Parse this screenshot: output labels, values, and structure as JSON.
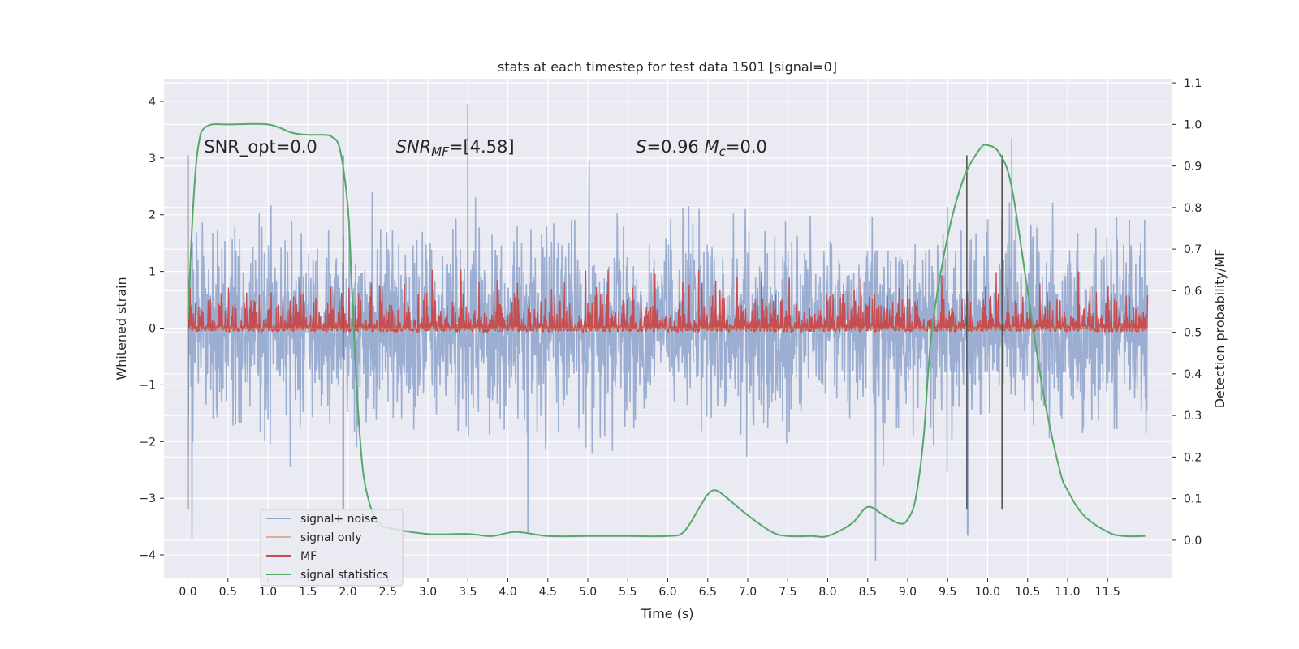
{
  "chart_data": {
    "type": "line",
    "title": "stats at each timestep for test data 1501 [signal=0]",
    "xlabel": "Time (s)",
    "ylabel": "Whitened strain",
    "y2label": "Detection probability/MF",
    "xlim": [
      -0.3,
      12.3
    ],
    "ylim": [
      -4.4,
      4.4
    ],
    "y2lim": [
      -0.09,
      1.11
    ],
    "x_ticks": [
      0.0,
      0.5,
      1.0,
      1.5,
      2.0,
      2.5,
      3.0,
      3.5,
      4.0,
      4.5,
      5.0,
      5.5,
      6.0,
      6.5,
      7.0,
      7.5,
      8.0,
      8.5,
      9.0,
      9.5,
      10.0,
      10.5,
      11.0,
      11.5
    ],
    "x_tick_labels": [
      "0.0",
      "0.5",
      "1.0",
      "1.5",
      "2.0",
      "2.5",
      "3.0",
      "3.5",
      "4.0",
      "4.5",
      "5.0",
      "5.5",
      "6.0",
      "6.5",
      "7.0",
      "7.5",
      "8.0",
      "8.5",
      "9.0",
      "9.5",
      "10.0",
      "10.5",
      "11.0",
      "11.5"
    ],
    "y_ticks": [
      -4,
      -3,
      -2,
      -1,
      0,
      1,
      2,
      3,
      4
    ],
    "y_tick_labels": [
      "−4",
      "−3",
      "−2",
      "−1",
      "0",
      "1",
      "2",
      "3",
      "4"
    ],
    "y2_ticks": [
      0.0,
      0.1,
      0.2,
      0.3,
      0.4,
      0.5,
      0.6,
      0.7,
      0.8,
      0.9,
      1.0,
      1.1
    ],
    "y2_tick_labels": [
      "0.0",
      "0.1",
      "0.2",
      "0.3",
      "0.4",
      "0.5",
      "0.6",
      "0.7",
      "0.8",
      "0.9",
      "1.0",
      "1.1"
    ],
    "grid": true,
    "legend_position": "bottom-left",
    "annotations": [
      {
        "parts": [
          {
            "t": "SNR_opt=0.0",
            "i": false
          }
        ],
        "x": 0.2
      },
      {
        "parts": [
          {
            "t": "SNR",
            "i": true
          },
          {
            "t": "MF",
            "i": true,
            "sub": true
          },
          {
            "t": "=[4.58]",
            "i": false
          }
        ],
        "x": 2.6
      },
      {
        "parts": [
          {
            "t": "S",
            "i": true
          },
          {
            "t": "=0.96  ",
            "i": false
          },
          {
            "t": "M",
            "i": true
          },
          {
            "t": "c",
            "i": true,
            "sub": true
          },
          {
            "t": "=0.0",
            "i": false
          }
        ],
        "x": 5.6
      }
    ],
    "annotation_y": 3.1,
    "vertical_lines": [
      {
        "x": 0.0,
        "y": [
          -3.2,
          3.05
        ]
      },
      {
        "x": 1.94,
        "y": [
          -3.2,
          3.05
        ]
      },
      {
        "x": 9.74,
        "y": [
          -3.2,
          3.05
        ]
      },
      {
        "x": 10.18,
        "y": [
          -3.2,
          3.05
        ]
      }
    ],
    "series": [
      {
        "name": "signal+ noise",
        "axis": "left",
        "color": "#4c72b0",
        "kind": "noise",
        "x_range": [
          0.0,
          12.0
        ],
        "typical_abs": 1.3,
        "peak_max": 3.95,
        "peak_min": -4.1,
        "peaks": [
          {
            "x": 3.5,
            "y": 3.95
          },
          {
            "x": 10.3,
            "y": 3.35
          },
          {
            "x": 8.6,
            "y": -4.1
          },
          {
            "x": 4.25,
            "y": -3.6
          },
          {
            "x": 0.05,
            "y": -3.7
          },
          {
            "x": 9.75,
            "y": -3.65
          }
        ]
      },
      {
        "name": "signal only",
        "axis": "left",
        "color": "#dd8452",
        "kind": "flat",
        "x_range": [
          0.0,
          12.0
        ],
        "value": 0.0
      },
      {
        "name": "MF",
        "axis": "right",
        "color": "#c44e52",
        "kind": "band",
        "x_range": [
          0.0,
          12.0
        ],
        "low": 0.5,
        "high_typical": 0.57,
        "high_max": 0.65
      },
      {
        "name": "signal statistics",
        "axis": "right",
        "color": "#55a868",
        "kind": "curve",
        "x": [
          0.0,
          0.05,
          0.1,
          0.15,
          0.2,
          0.3,
          0.5,
          1.0,
          1.3,
          1.5,
          1.7,
          1.8,
          1.9,
          2.0,
          2.05,
          2.1,
          2.15,
          2.2,
          2.3,
          2.4,
          2.5,
          3.0,
          3.5,
          3.8,
          4.1,
          4.5,
          5.0,
          5.5,
          6.0,
          6.2,
          6.4,
          6.5,
          6.6,
          6.75,
          7.0,
          7.3,
          7.5,
          7.8,
          8.0,
          8.3,
          8.5,
          8.7,
          8.9,
          9.0,
          9.1,
          9.2,
          9.3,
          9.5,
          9.7,
          9.9,
          10.0,
          10.15,
          10.3,
          10.5,
          10.7,
          10.9,
          11.0,
          11.2,
          11.5,
          11.7,
          11.97
        ],
        "y": [
          0.53,
          0.75,
          0.9,
          0.97,
          0.99,
          1.0,
          1.0,
          1.0,
          0.98,
          0.975,
          0.975,
          0.97,
          0.94,
          0.8,
          0.6,
          0.4,
          0.25,
          0.15,
          0.07,
          0.04,
          0.03,
          0.015,
          0.015,
          0.01,
          0.02,
          0.01,
          0.01,
          0.01,
          0.01,
          0.02,
          0.08,
          0.11,
          0.12,
          0.1,
          0.06,
          0.02,
          0.01,
          0.01,
          0.01,
          0.04,
          0.08,
          0.06,
          0.04,
          0.05,
          0.1,
          0.25,
          0.5,
          0.73,
          0.87,
          0.94,
          0.95,
          0.93,
          0.85,
          0.6,
          0.35,
          0.17,
          0.12,
          0.06,
          0.02,
          0.01,
          0.01
        ]
      }
    ]
  }
}
